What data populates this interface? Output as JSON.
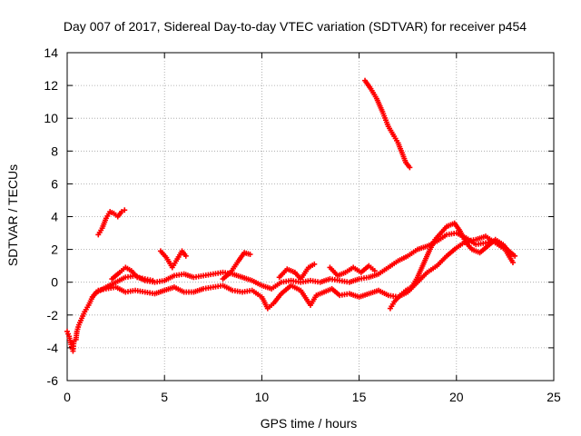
{
  "chart_data": {
    "type": "scatter",
    "title": "Day 007 of 2017, Sidereal Day-to-day VTEC variation (SDTVAR) for receiver p454",
    "xlabel": "GPS time / hours",
    "ylabel": "SDTVAR / TECUs",
    "xlim": [
      0,
      25
    ],
    "ylim": [
      -6,
      14
    ],
    "xticks": [
      0,
      5,
      10,
      15,
      20,
      25
    ],
    "yticks": [
      -6,
      -4,
      -2,
      0,
      2,
      4,
      6,
      8,
      10,
      12,
      14
    ],
    "grid": true,
    "legend": "none",
    "color": "#ff0000",
    "series": [
      {
        "points": [
          [
            0.0,
            -3.0
          ],
          [
            0.1,
            -3.3
          ],
          [
            0.2,
            -3.8
          ],
          [
            0.3,
            -4.2
          ],
          [
            0.35,
            -3.6
          ],
          [
            0.45,
            -3.5
          ],
          [
            0.5,
            -3.0
          ],
          [
            0.6,
            -2.6
          ],
          [
            0.75,
            -2.2
          ],
          [
            0.9,
            -1.8
          ],
          [
            1.1,
            -1.4
          ],
          [
            1.3,
            -0.9
          ],
          [
            1.5,
            -0.6
          ],
          [
            1.7,
            -0.5
          ],
          [
            2.0,
            -0.3
          ],
          [
            2.5,
            0.0
          ],
          [
            3.0,
            0.3
          ],
          [
            3.5,
            0.4
          ],
          [
            4.0,
            0.1
          ],
          [
            4.5,
            0.0
          ],
          [
            5.0,
            0.1
          ],
          [
            5.5,
            0.4
          ],
          [
            6.0,
            0.5
          ],
          [
            6.5,
            0.3
          ],
          [
            7.0,
            0.4
          ],
          [
            7.5,
            0.5
          ],
          [
            8.0,
            0.6
          ],
          [
            8.5,
            0.5
          ],
          [
            9.0,
            0.3
          ],
          [
            9.5,
            0.1
          ],
          [
            10.0,
            -0.2
          ],
          [
            10.5,
            -0.4
          ],
          [
            11.0,
            0.0
          ],
          [
            11.5,
            0.1
          ],
          [
            12.0,
            0.0
          ],
          [
            12.5,
            0.1
          ],
          [
            13.0,
            0.0
          ],
          [
            13.5,
            0.2
          ],
          [
            14.0,
            0.1
          ],
          [
            14.5,
            0.0
          ],
          [
            15.0,
            0.2
          ],
          [
            15.5,
            0.3
          ],
          [
            16.0,
            0.5
          ],
          [
            16.5,
            0.9
          ],
          [
            17.0,
            1.3
          ],
          [
            17.5,
            1.6
          ],
          [
            18.0,
            2.0
          ],
          [
            18.5,
            2.2
          ],
          [
            19.0,
            2.5
          ],
          [
            19.5,
            2.9
          ],
          [
            20.0,
            3.0
          ],
          [
            20.5,
            2.7
          ],
          [
            21.0,
            2.3
          ],
          [
            21.5,
            2.4
          ],
          [
            22.0,
            2.5
          ],
          [
            22.5,
            2.1
          ],
          [
            23.0,
            1.6
          ]
        ]
      },
      {
        "points": [
          [
            1.3,
            -0.9
          ],
          [
            1.6,
            -0.5
          ],
          [
            2.0,
            -0.4
          ],
          [
            2.5,
            -0.3
          ],
          [
            3.0,
            -0.6
          ],
          [
            3.5,
            -0.5
          ],
          [
            4.0,
            -0.6
          ],
          [
            4.5,
            -0.7
          ],
          [
            5.0,
            -0.5
          ],
          [
            5.5,
            -0.3
          ],
          [
            6.0,
            -0.6
          ],
          [
            6.5,
            -0.6
          ],
          [
            7.0,
            -0.4
          ],
          [
            7.5,
            -0.3
          ],
          [
            8.0,
            -0.2
          ],
          [
            8.5,
            -0.5
          ],
          [
            9.0,
            -0.6
          ],
          [
            9.5,
            -0.5
          ],
          [
            10.0,
            -0.9
          ],
          [
            10.3,
            -1.6
          ],
          [
            10.6,
            -1.3
          ],
          [
            11.0,
            -0.7
          ],
          [
            11.5,
            -0.2
          ],
          [
            12.0,
            -0.5
          ],
          [
            12.5,
            -1.4
          ],
          [
            12.8,
            -0.8
          ],
          [
            13.2,
            -0.6
          ],
          [
            13.6,
            -0.4
          ],
          [
            14.0,
            -0.8
          ],
          [
            14.5,
            -0.7
          ],
          [
            15.0,
            -0.9
          ],
          [
            15.5,
            -0.7
          ],
          [
            16.0,
            -0.5
          ],
          [
            16.5,
            -0.8
          ],
          [
            17.0,
            -0.9
          ],
          [
            17.5,
            -0.6
          ],
          [
            18.0,
            0.0
          ],
          [
            18.5,
            0.6
          ],
          [
            19.0,
            1.0
          ],
          [
            19.5,
            1.6
          ],
          [
            20.0,
            2.1
          ],
          [
            20.5,
            2.5
          ],
          [
            21.0,
            2.6
          ],
          [
            21.5,
            2.8
          ],
          [
            22.0,
            2.4
          ],
          [
            22.5,
            2.0
          ],
          [
            22.9,
            1.2
          ]
        ]
      },
      {
        "points": [
          [
            2.3,
            0.2
          ],
          [
            2.7,
            0.6
          ],
          [
            3.0,
            0.9
          ],
          [
            3.3,
            0.7
          ],
          [
            3.6,
            0.3
          ],
          [
            4.0,
            0.2
          ],
          [
            4.4,
            0.1
          ]
        ]
      },
      {
        "points": [
          [
            4.8,
            1.9
          ],
          [
            5.1,
            1.5
          ],
          [
            5.4,
            0.9
          ],
          [
            5.6,
            1.3
          ],
          [
            5.9,
            1.9
          ],
          [
            6.1,
            1.6
          ]
        ]
      },
      {
        "points": [
          [
            8.0,
            0.2
          ],
          [
            8.4,
            0.6
          ],
          [
            8.8,
            1.3
          ],
          [
            9.1,
            1.8
          ],
          [
            9.4,
            1.7
          ]
        ]
      },
      {
        "points": [
          [
            10.9,
            0.3
          ],
          [
            11.3,
            0.8
          ],
          [
            11.7,
            0.6
          ],
          [
            12.0,
            0.2
          ],
          [
            12.4,
            0.9
          ],
          [
            12.7,
            1.1
          ]
        ]
      },
      {
        "points": [
          [
            13.5,
            0.9
          ],
          [
            13.9,
            0.4
          ],
          [
            14.3,
            0.6
          ],
          [
            14.7,
            0.9
          ],
          [
            15.1,
            0.6
          ],
          [
            15.5,
            1.0
          ],
          [
            15.8,
            0.7
          ]
        ]
      },
      {
        "points": [
          [
            16.6,
            -1.6
          ],
          [
            16.8,
            -1.2
          ],
          [
            17.1,
            -0.8
          ],
          [
            17.4,
            -0.5
          ],
          [
            17.7,
            -0.3
          ],
          [
            18.0,
            0.3
          ],
          [
            18.3,
            1.1
          ],
          [
            18.6,
            1.9
          ],
          [
            18.9,
            2.6
          ],
          [
            19.2,
            3.0
          ],
          [
            19.5,
            3.4
          ],
          [
            19.9,
            3.6
          ],
          [
            20.2,
            3.1
          ],
          [
            20.5,
            2.4
          ],
          [
            20.8,
            2.0
          ],
          [
            21.2,
            1.8
          ],
          [
            21.6,
            2.2
          ],
          [
            22.0,
            2.6
          ],
          [
            22.4,
            2.3
          ],
          [
            22.8,
            1.7
          ]
        ]
      },
      {
        "points": [
          [
            1.6,
            2.9
          ],
          [
            1.8,
            3.3
          ],
          [
            2.0,
            3.9
          ],
          [
            2.2,
            4.3
          ],
          [
            2.4,
            4.2
          ],
          [
            2.6,
            4.0
          ],
          [
            2.8,
            4.3
          ],
          [
            2.95,
            4.4
          ]
        ]
      },
      {
        "points": [
          [
            15.3,
            12.3
          ],
          [
            15.6,
            11.8
          ],
          [
            15.9,
            11.2
          ],
          [
            16.2,
            10.4
          ],
          [
            16.5,
            9.5
          ],
          [
            16.8,
            8.9
          ],
          [
            17.0,
            8.5
          ],
          [
            17.2,
            7.9
          ],
          [
            17.4,
            7.3
          ],
          [
            17.6,
            7.0
          ]
        ]
      }
    ]
  }
}
